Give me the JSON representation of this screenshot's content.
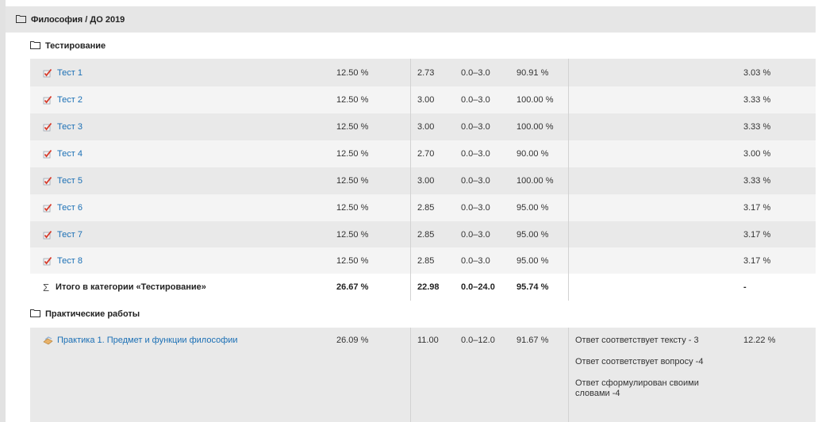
{
  "category": {
    "title": "Философия / ДО 2019"
  },
  "testing": {
    "title": "Тестирование",
    "items": [
      {
        "name": "Тест 1",
        "weight": "12.50 %",
        "grade": "2.73",
        "range": "0.0–3.0",
        "percent": "90.91 %",
        "contribution": "3.03 %"
      },
      {
        "name": "Тест 2",
        "weight": "12.50 %",
        "grade": "3.00",
        "range": "0.0–3.0",
        "percent": "100.00 %",
        "contribution": "3.33 %"
      },
      {
        "name": "Тест 3",
        "weight": "12.50 %",
        "grade": "3.00",
        "range": "0.0–3.0",
        "percent": "100.00 %",
        "contribution": "3.33 %"
      },
      {
        "name": "Тест 4",
        "weight": "12.50 %",
        "grade": "2.70",
        "range": "0.0–3.0",
        "percent": "90.00 %",
        "contribution": "3.00 %"
      },
      {
        "name": "Тест 5",
        "weight": "12.50 %",
        "grade": "3.00",
        "range": "0.0–3.0",
        "percent": "100.00 %",
        "contribution": "3.33 %"
      },
      {
        "name": "Тест 6",
        "weight": "12.50 %",
        "grade": "2.85",
        "range": "0.0–3.0",
        "percent": "95.00 %",
        "contribution": "3.17 %"
      },
      {
        "name": "Тест 7",
        "weight": "12.50 %",
        "grade": "2.85",
        "range": "0.0–3.0",
        "percent": "95.00 %",
        "contribution": "3.17 %"
      },
      {
        "name": "Тест 8",
        "weight": "12.50 %",
        "grade": "2.85",
        "range": "0.0–3.0",
        "percent": "95.00 %",
        "contribution": "3.17 %"
      }
    ],
    "total": {
      "label": "Итого в категории «Тестирование»",
      "weight": "26.67 %",
      "grade": "22.98",
      "range": "0.0–24.0",
      "percent": "95.74 %",
      "contribution": "-"
    }
  },
  "practice": {
    "title": "Практические работы",
    "items": [
      {
        "name": "Практика 1. Предмет и функции философии",
        "weight": "26.09 %",
        "grade": "11.00",
        "range": "0.0–12.0",
        "percent": "91.67 %",
        "contribution": "12.22 %",
        "feedback": [
          "Ответ соответствует тексту  - 3",
          "Ответ соответствует вопросу  -4",
          "Ответ сформулирован своими словами -4"
        ]
      }
    ]
  },
  "icons": {
    "folder": "folder-icon",
    "quiz": "quiz-icon",
    "assignment": "assignment-icon",
    "sum": "Σ"
  },
  "colors": {
    "link": "#1a6fb5",
    "row_dark": "#e9e9e9",
    "row_light": "#f4f4f4",
    "header_bg": "#e6e6e6"
  }
}
